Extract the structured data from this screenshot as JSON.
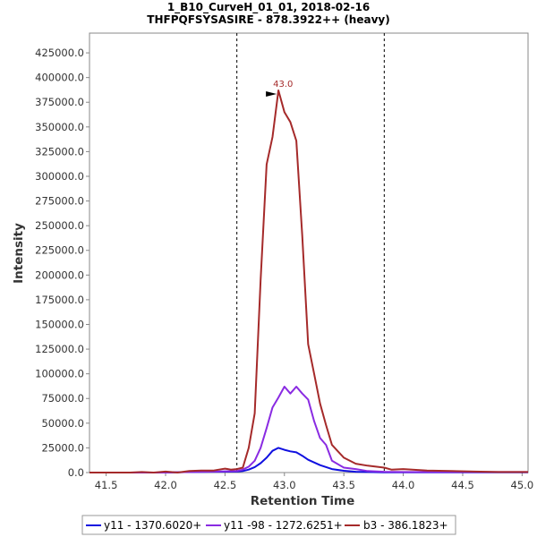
{
  "chart_data": {
    "type": "line",
    "title": [
      "1_B10_CurveH_01_01, 2018-02-16",
      "THFPQFSYSASIRE - 878.3922++ (heavy)"
    ],
    "xlabel": "Retention Time",
    "ylabel": "Intensity",
    "xlim": [
      41.36,
      45.05
    ],
    "ylim": [
      0,
      445000
    ],
    "xticks": [
      41.5,
      42.0,
      42.5,
      43.0,
      43.5,
      44.0,
      44.5,
      45.0
    ],
    "yticks": [
      0,
      25000,
      50000,
      75000,
      100000,
      125000,
      150000,
      175000,
      200000,
      225000,
      250000,
      275000,
      300000,
      325000,
      350000,
      375000,
      400000,
      425000
    ],
    "vlines": [
      42.6,
      43.84
    ],
    "annotation": {
      "text": "43.0",
      "x": 42.95,
      "y": 387000
    },
    "series": [
      {
        "name": "y11 - 1370.6020+",
        "color": "#1010e0",
        "x": [
          41.36,
          41.6,
          41.8,
          42.0,
          42.2,
          42.4,
          42.6,
          42.65,
          42.7,
          42.75,
          42.8,
          42.85,
          42.9,
          42.95,
          43.0,
          43.05,
          43.1,
          43.15,
          43.2,
          43.3,
          43.4,
          43.5,
          43.6,
          43.7,
          43.84,
          44.0,
          44.2,
          44.4,
          44.6,
          44.8,
          45.05
        ],
        "y": [
          0,
          0,
          0,
          0,
          500,
          800,
          1000,
          1500,
          3000,
          5500,
          9500,
          15000,
          22000,
          25000,
          23000,
          21500,
          20500,
          17000,
          13000,
          7500,
          3500,
          1800,
          800,
          500,
          300,
          200,
          200,
          200,
          200,
          200,
          200
        ]
      },
      {
        "name": "y11 -98 - 1272.6251+",
        "color": "#8a2be2",
        "x": [
          41.36,
          41.6,
          41.8,
          42.0,
          42.2,
          42.4,
          42.6,
          42.65,
          42.7,
          42.75,
          42.8,
          42.85,
          42.9,
          42.95,
          43.0,
          43.05,
          43.1,
          43.15,
          43.2,
          43.25,
          43.3,
          43.35,
          43.4,
          43.5,
          43.6,
          43.7,
          43.84,
          44.0,
          44.2,
          44.4,
          44.6,
          44.8,
          45.05
        ],
        "y": [
          0,
          0,
          0,
          0,
          500,
          1000,
          1500,
          3000,
          6000,
          12000,
          25000,
          45000,
          66000,
          76000,
          87000,
          80000,
          87000,
          80000,
          74000,
          52000,
          35000,
          28000,
          12000,
          5000,
          3500,
          1500,
          800,
          500,
          500,
          500,
          500,
          500,
          500
        ]
      },
      {
        "name": "b3 - 386.1823+",
        "color": "#a52a2a",
        "x": [
          41.36,
          41.6,
          41.7,
          41.8,
          41.9,
          42.0,
          42.1,
          42.2,
          42.3,
          42.4,
          42.45,
          42.5,
          42.55,
          42.6,
          42.65,
          42.7,
          42.75,
          42.8,
          42.85,
          42.9,
          42.95,
          43.0,
          43.05,
          43.1,
          43.15,
          43.2,
          43.25,
          43.3,
          43.35,
          43.4,
          43.5,
          43.6,
          43.7,
          43.84,
          43.9,
          44.0,
          44.2,
          44.4,
          44.6,
          44.8,
          45.05
        ],
        "y": [
          0,
          0,
          0,
          500,
          0,
          1000,
          0,
          1500,
          2000,
          2000,
          3000,
          4000,
          3000,
          3500,
          5000,
          25000,
          60000,
          195000,
          312000,
          340000,
          387000,
          365000,
          355000,
          336000,
          240000,
          130000,
          100000,
          70000,
          48000,
          28000,
          15000,
          9000,
          7000,
          5000,
          3000,
          3500,
          2000,
          1500,
          1000,
          500,
          500
        ]
      }
    ]
  }
}
